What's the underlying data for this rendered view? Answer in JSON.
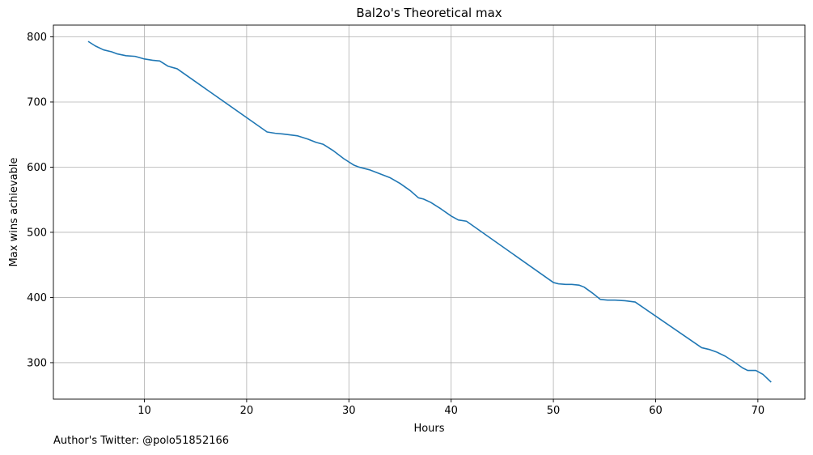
{
  "chart_data": {
    "type": "line",
    "title": "Bal2o's Theoretical max",
    "xlabel": "Hours",
    "ylabel": "Max wins achievable",
    "xlim": [
      1.1,
      74.6
    ],
    "ylim": [
      244,
      818
    ],
    "xticks": [
      10,
      20,
      30,
      40,
      50,
      60,
      70
    ],
    "yticks": [
      300,
      400,
      500,
      600,
      700,
      800
    ],
    "grid": true,
    "series": [
      {
        "color": "#1f77b4",
        "points": [
          [
            4.5,
            793
          ],
          [
            5.2,
            786
          ],
          [
            6.0,
            780
          ],
          [
            6.8,
            777
          ],
          [
            7.3,
            774
          ],
          [
            8.2,
            771
          ],
          [
            9.1,
            770
          ],
          [
            10.0,
            766
          ],
          [
            10.8,
            764
          ],
          [
            11.5,
            763
          ],
          [
            12.3,
            755
          ],
          [
            13.2,
            751
          ],
          [
            22.0,
            654
          ],
          [
            22.8,
            652
          ],
          [
            23.5,
            651
          ],
          [
            24.0,
            650
          ],
          [
            25.0,
            648
          ],
          [
            26.0,
            643
          ],
          [
            26.8,
            638
          ],
          [
            27.5,
            635
          ],
          [
            28.5,
            625
          ],
          [
            29.5,
            613
          ],
          [
            30.5,
            603
          ],
          [
            31.0,
            600
          ],
          [
            32.0,
            596
          ],
          [
            33.0,
            590
          ],
          [
            34.0,
            584
          ],
          [
            35.0,
            575
          ],
          [
            36.0,
            564
          ],
          [
            36.8,
            553
          ],
          [
            37.3,
            551
          ],
          [
            38.0,
            546
          ],
          [
            39.0,
            536
          ],
          [
            40.0,
            525
          ],
          [
            40.7,
            519
          ],
          [
            41.5,
            517
          ],
          [
            50.0,
            423
          ],
          [
            50.5,
            421
          ],
          [
            51.2,
            420
          ],
          [
            51.8,
            420
          ],
          [
            52.5,
            419
          ],
          [
            53.0,
            416
          ],
          [
            53.8,
            407
          ],
          [
            54.6,
            397
          ],
          [
            55.3,
            396
          ],
          [
            56.0,
            396
          ],
          [
            57.0,
            395
          ],
          [
            58.0,
            393
          ],
          [
            64.5,
            323
          ],
          [
            65.3,
            320
          ],
          [
            66.0,
            316
          ],
          [
            66.8,
            310
          ],
          [
            67.5,
            303
          ],
          [
            68.5,
            292
          ],
          [
            69.0,
            288
          ],
          [
            69.8,
            288
          ],
          [
            70.5,
            282
          ],
          [
            71.3,
            270
          ]
        ]
      }
    ]
  },
  "footer": {
    "author_note": "Author's Twitter: @polo51852166"
  }
}
